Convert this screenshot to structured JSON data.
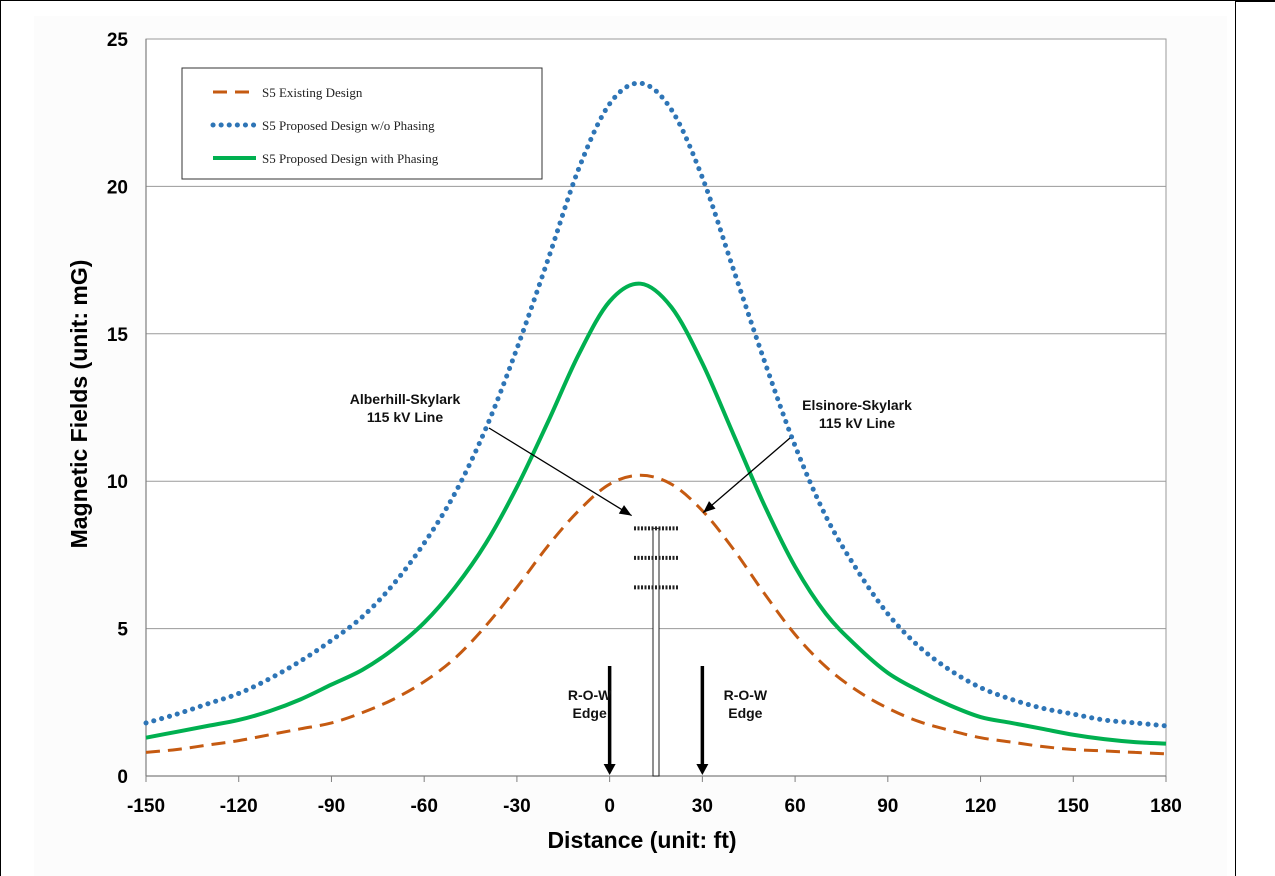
{
  "chart_data": {
    "type": "line",
    "title": "",
    "xlabel": "Distance (unit: ft)",
    "ylabel": "Magnetic Fields (unit: mG)",
    "xlim": [
      -150,
      180
    ],
    "ylim": [
      0,
      25
    ],
    "x_ticks": [
      "-150",
      "-120",
      "-90",
      "-60",
      "-30",
      "0",
      "30",
      "60",
      "90",
      "120",
      "150",
      "180"
    ],
    "y_ticks": [
      "0",
      "5",
      "10",
      "15",
      "20",
      "25"
    ],
    "grid": "horizontal",
    "legend_position": "top-left",
    "x": [
      -150,
      -140,
      -130,
      -120,
      -110,
      -100,
      -90,
      -80,
      -70,
      -60,
      -50,
      -40,
      -30,
      -20,
      -10,
      0,
      10,
      20,
      30,
      40,
      50,
      60,
      70,
      80,
      90,
      100,
      110,
      120,
      130,
      140,
      150,
      160,
      170,
      180
    ],
    "series": [
      {
        "name": "S5 Existing Design",
        "color": "#c55a11",
        "style": "dashed",
        "values": [
          0.8,
          0.9,
          1.05,
          1.2,
          1.4,
          1.6,
          1.8,
          2.15,
          2.6,
          3.2,
          4.0,
          5.1,
          6.4,
          7.8,
          9.0,
          9.9,
          10.2,
          9.9,
          9.0,
          7.7,
          6.2,
          4.8,
          3.7,
          2.9,
          2.3,
          1.85,
          1.55,
          1.3,
          1.15,
          1.0,
          0.9,
          0.85,
          0.8,
          0.75
        ]
      },
      {
        "name": "S5 Proposed Design w/o Phasing",
        "color": "#2e75b6",
        "style": "dotted",
        "values": [
          1.8,
          2.1,
          2.45,
          2.8,
          3.3,
          3.9,
          4.6,
          5.4,
          6.5,
          7.9,
          9.6,
          11.8,
          14.5,
          17.5,
          20.6,
          22.8,
          23.5,
          22.6,
          20.3,
          17.2,
          14.1,
          11.2,
          8.8,
          7.0,
          5.5,
          4.4,
          3.6,
          3.0,
          2.6,
          2.3,
          2.1,
          1.9,
          1.8,
          1.7
        ]
      },
      {
        "name": "S5 Proposed Design with Phasing",
        "color": "#00b050",
        "style": "solid",
        "values": [
          1.3,
          1.5,
          1.7,
          1.9,
          2.2,
          2.6,
          3.1,
          3.6,
          4.3,
          5.2,
          6.4,
          7.9,
          9.8,
          12.0,
          14.3,
          16.1,
          16.7,
          15.9,
          14.0,
          11.6,
          9.2,
          7.1,
          5.5,
          4.4,
          3.5,
          2.9,
          2.4,
          2.0,
          1.8,
          1.6,
          1.4,
          1.25,
          1.15,
          1.1
        ]
      }
    ],
    "annotations": [
      {
        "line1": "Alberhill-Skylark",
        "line2": "115 kV Line",
        "points_to_x": 0,
        "points_to_y": 8.9
      },
      {
        "line1": "Elsinore-Skylark",
        "line2": "115 kV Line",
        "points_to_x": 28,
        "points_to_y": 9.0
      },
      {
        "line1": "R-O-W",
        "line2": "Edge",
        "at_x": 0
      },
      {
        "line1": "R-O-W",
        "line2": "Edge",
        "at_x": 30
      }
    ],
    "tower": {
      "x": 15,
      "top_y": 8.4,
      "crossarm_y": [
        8.4,
        7.4,
        6.4
      ]
    }
  }
}
